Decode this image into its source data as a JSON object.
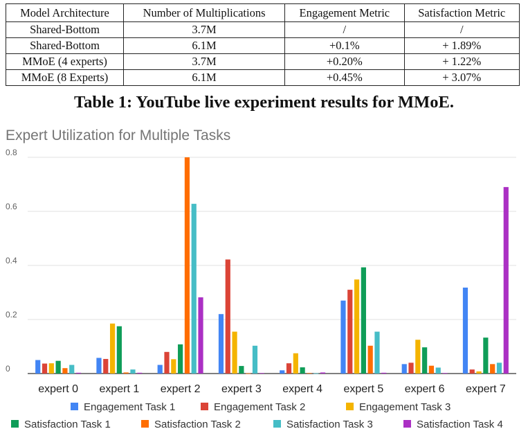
{
  "table": {
    "headers": [
      "Model Architecture",
      "Number of Multiplications",
      "Engagement Metric",
      "Satisfaction Metric"
    ],
    "rows": [
      [
        "Shared-Bottom",
        "3.7M",
        "/",
        "/"
      ],
      [
        "Shared-Bottom",
        "6.1M",
        "+0.1%",
        "+ 1.89%"
      ],
      [
        "MMoE (4 experts)",
        "3.7M",
        "+0.20%",
        "+ 1.22%"
      ],
      [
        "MMoE (8 Experts)",
        "6.1M",
        "+0.45%",
        "+ 3.07%"
      ]
    ],
    "caption": "Table 1: YouTube live experiment results for MMoE."
  },
  "chart_data": {
    "type": "bar",
    "title": "Expert Utilization for Multiple Tasks",
    "xlabel": "",
    "ylabel": "",
    "ylim": [
      0,
      0.8
    ],
    "yticks": [
      "0",
      "0.2",
      "0.4",
      "0.6",
      "0.8"
    ],
    "grid": true,
    "legend_position": "bottom",
    "categories": [
      "expert 0",
      "expert 1",
      "expert 2",
      "expert 3",
      "expert 4",
      "expert 5",
      "expert 6",
      "expert 7"
    ],
    "series": [
      {
        "name": "Engagement Task 1",
        "color": "#4285f4",
        "values": [
          0.05,
          0.058,
          0.032,
          0.22,
          0.012,
          0.27,
          0.035,
          0.318
        ]
      },
      {
        "name": "Engagement Task 2",
        "color": "#db4437",
        "values": [
          0.037,
          0.054,
          0.08,
          0.422,
          0.038,
          0.31,
          0.04,
          0.015
        ]
      },
      {
        "name": "Engagement Task 3",
        "color": "#f4b400",
        "values": [
          0.038,
          0.185,
          0.053,
          0.155,
          0.075,
          0.348,
          0.125,
          0.008
        ]
      },
      {
        "name": "Satisfaction Task 1",
        "color": "#0f9d58",
        "values": [
          0.047,
          0.175,
          0.108,
          0.028,
          0.023,
          0.393,
          0.097,
          0.133
        ]
      },
      {
        "name": "Satisfaction Task 2",
        "color": "#ff6d00",
        "values": [
          0.02,
          0.004,
          0.8,
          0.001,
          0.002,
          0.103,
          0.029,
          0.035
        ]
      },
      {
        "name": "Satisfaction Task 3",
        "color": "#46bdc6",
        "values": [
          0.032,
          0.015,
          0.628,
          0.103,
          0.001,
          0.155,
          0.022,
          0.04
        ]
      },
      {
        "name": "Satisfaction Task 4",
        "color": "#ab30c4",
        "values": [
          0.003,
          0.003,
          0.282,
          0.002,
          0.004,
          0.003,
          0.002,
          0.69
        ]
      }
    ]
  }
}
